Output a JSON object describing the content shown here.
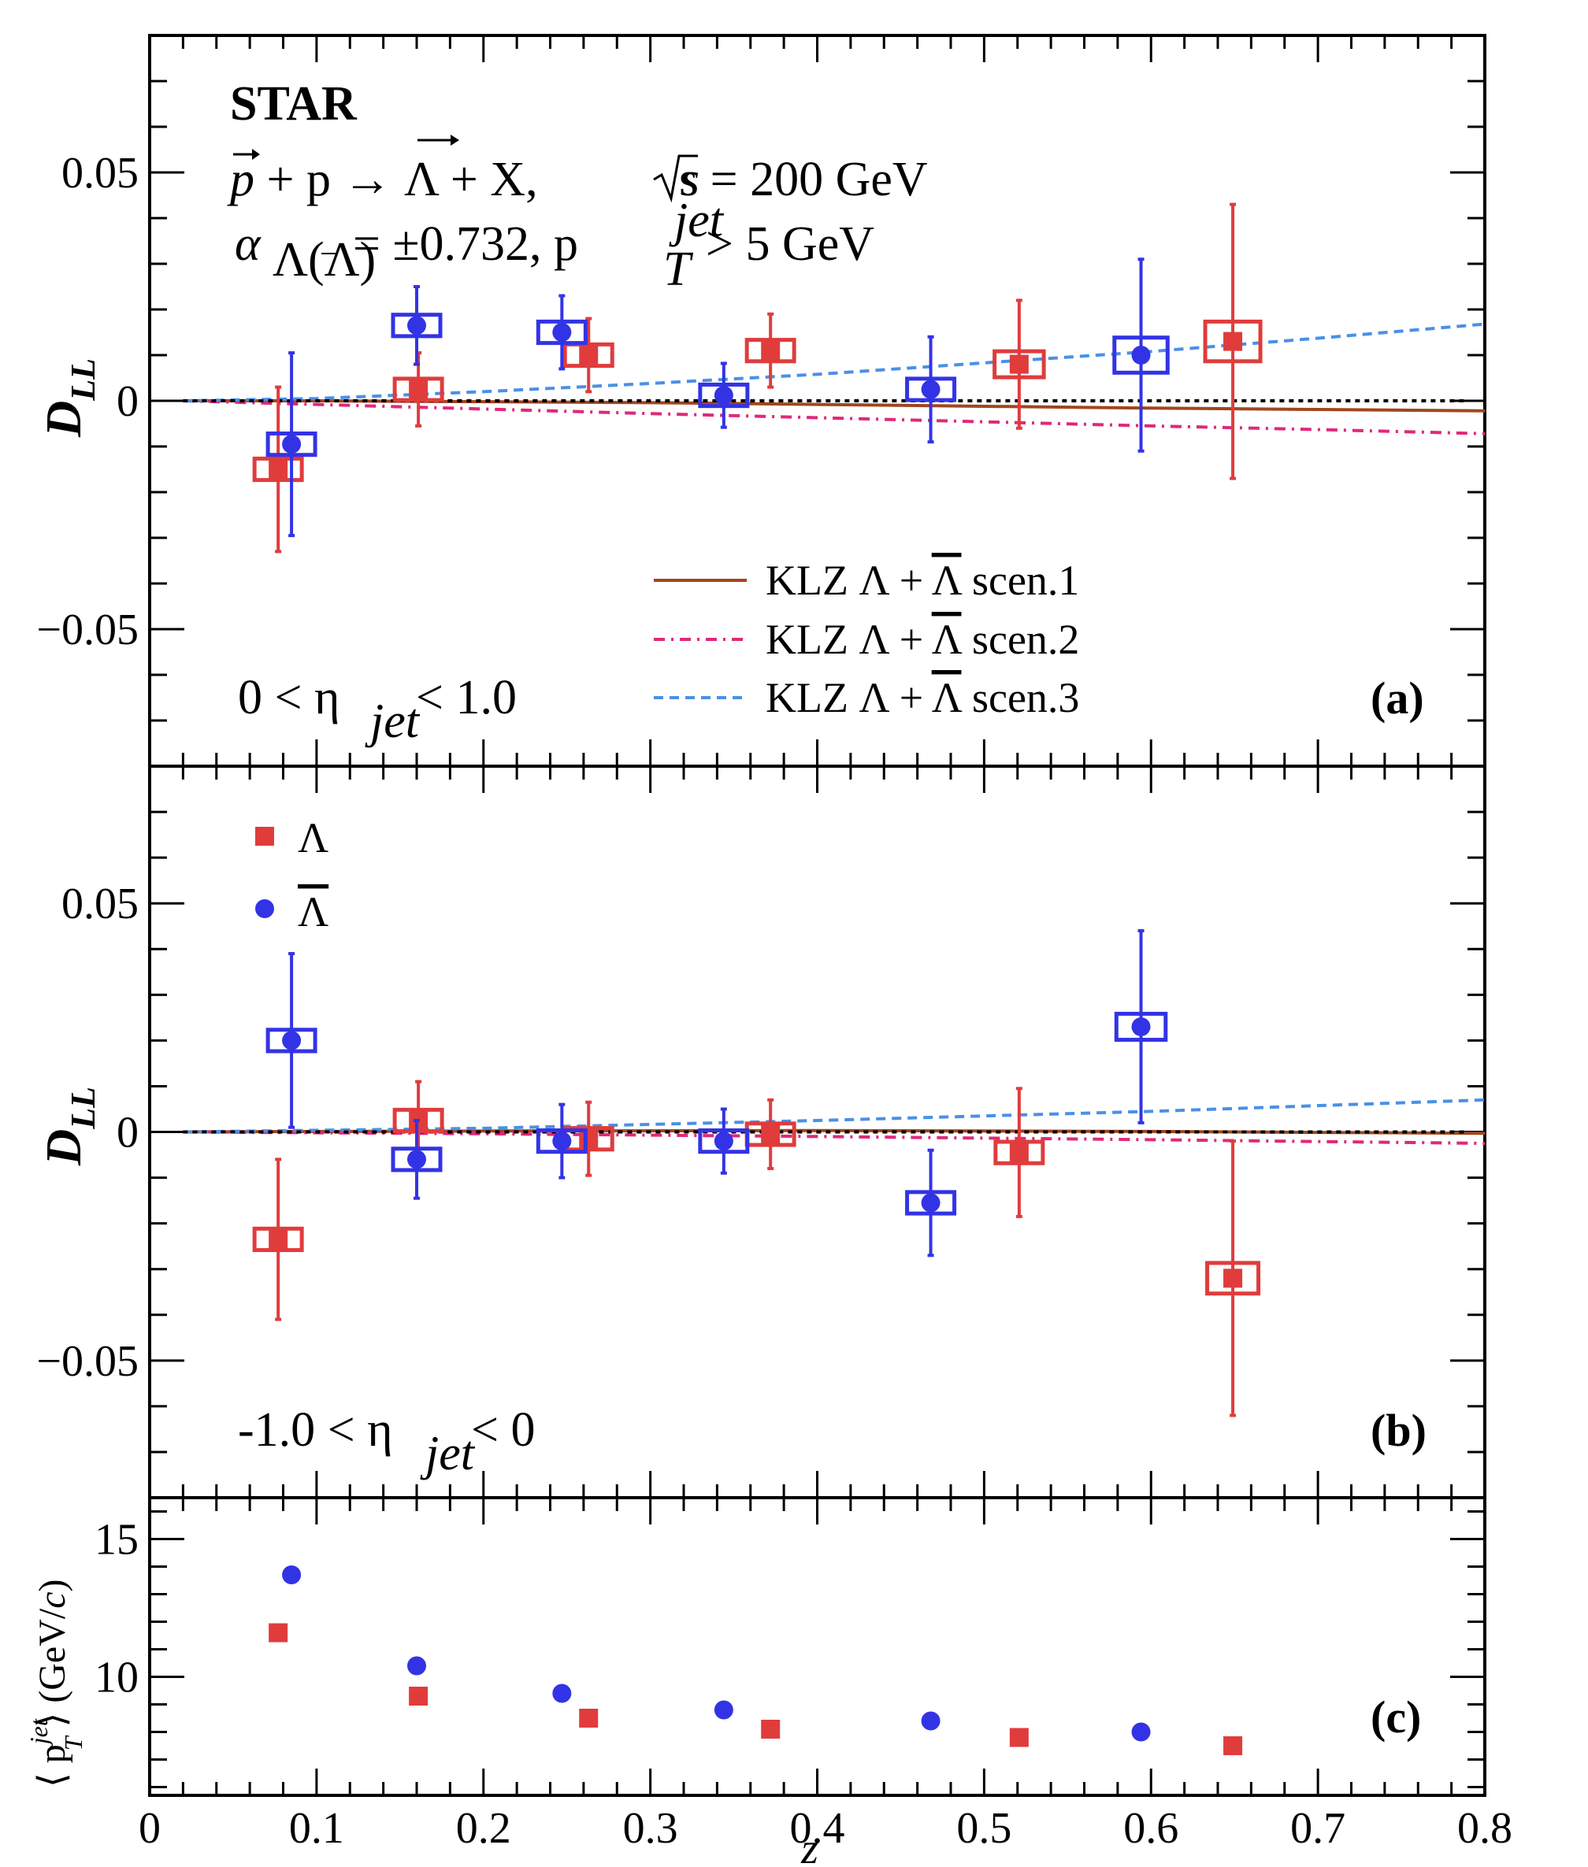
{
  "chart_data": [
    {
      "type": "scatter",
      "panel": "a",
      "panel_label": "(a)",
      "ylabel": "D",
      "ylabel_sub": "LL",
      "xlim": [
        0,
        0.8
      ],
      "ylim": [
        -0.08,
        0.08
      ],
      "yticks": [
        -0.05,
        0,
        0.05
      ],
      "ytick_labels": [
        "−0.05",
        "0",
        "0.05"
      ],
      "annotations": {
        "experiment": "STAR",
        "reaction_lhs": "p",
        "reaction_mid": " + p → ",
        "reaction_rhs": "Λ",
        "reaction_tail": " + X,",
        "sqrt_s": "s = 200 GeV",
        "alpha_a": "α",
        "alpha_sub": "Λ(Λ)",
        "alpha_val": " = ±0.732,  p",
        "pt_sup": "jet",
        "pt_sub": "T",
        "pt_val": " > 5 GeV",
        "eta_left": "0 < η",
        "eta_sub": "jet",
        "eta_right": " < 1.0"
      },
      "legend_position": "bottom-right",
      "series": [
        {
          "name": "Λ",
          "marker": "square",
          "color": "#e03c3c",
          "points": [
            {
              "z": 0.077,
              "y": -0.015,
              "err": 0.018,
              "sys": 0.002
            },
            {
              "z": 0.161,
              "y": 0.0025,
              "err": 0.008,
              "sys": 0.002
            },
            {
              "z": 0.263,
              "y": 0.01,
              "err": 0.008,
              "sys": 0.002
            },
            {
              "z": 0.372,
              "y": 0.011,
              "err": 0.008,
              "sys": 0.002
            },
            {
              "z": 0.521,
              "y": 0.008,
              "err": 0.014,
              "sys": 0.0025
            },
            {
              "z": 0.649,
              "y": 0.013,
              "err": 0.03,
              "sys": 0.004
            }
          ]
        },
        {
          "name": "Λ",
          "marker": "circle",
          "color": "#3333e6",
          "points": [
            {
              "z": 0.085,
              "y": -0.0095,
              "err": 0.02,
              "sys": 0.002
            },
            {
              "z": 0.16,
              "y": 0.0165,
              "err": 0.0085,
              "sys": 0.002
            },
            {
              "z": 0.247,
              "y": 0.015,
              "err": 0.008,
              "sys": 0.002
            },
            {
              "z": 0.344,
              "y": 0.0012,
              "err": 0.007,
              "sys": 0.002
            },
            {
              "z": 0.468,
              "y": 0.0025,
              "err": 0.0115,
              "sys": 0.002
            },
            {
              "z": 0.594,
              "y": 0.01,
              "err": 0.021,
              "sys": 0.0035
            }
          ]
        }
      ],
      "curves": [
        {
          "name": "KLZ Λ + Λ scen.1",
          "label_text": "KLZ Λ + ",
          "label_bar": "Λ",
          "label_tail": " scen.1",
          "style": "solid",
          "color": "#a0461e",
          "x": [
            0.02,
            0.1,
            0.2,
            0.3,
            0.4,
            0.5,
            0.6,
            0.7,
            0.8
          ],
          "y": [
            0,
            0,
            -0.0002,
            -0.0004,
            -0.0008,
            -0.0012,
            -0.0016,
            -0.0019,
            -0.0022
          ]
        },
        {
          "name": "KLZ Λ + Λ scen.2",
          "label_text": "KLZ Λ + ",
          "label_bar": "Λ",
          "label_tail": " scen.2",
          "style": "dashdot",
          "color": "#e0287a",
          "x": [
            0.02,
            0.1,
            0.2,
            0.3,
            0.4,
            0.5,
            0.6,
            0.7,
            0.8
          ],
          "y": [
            0,
            -0.0008,
            -0.0018,
            -0.0028,
            -0.0037,
            -0.0046,
            -0.0055,
            -0.0063,
            -0.0072
          ]
        },
        {
          "name": "KLZ Λ + Λ scen.3",
          "label_text": "KLZ Λ + ",
          "label_bar": "Λ",
          "label_tail": " scen.3",
          "style": "dashed",
          "color": "#4a90e6",
          "x": [
            0.02,
            0.1,
            0.2,
            0.3,
            0.4,
            0.5,
            0.6,
            0.7,
            0.8
          ],
          "y": [
            0,
            0.0005,
            0.002,
            0.0038,
            0.0058,
            0.0083,
            0.0108,
            0.0137,
            0.0168
          ]
        },
        {
          "name": "zero",
          "style": "dotted",
          "color": "#000000",
          "x": [
            0.02,
            0.79
          ],
          "y": [
            0,
            0
          ]
        }
      ]
    },
    {
      "type": "scatter",
      "panel": "b",
      "panel_label": "(b)",
      "ylabel": "D",
      "ylabel_sub": "LL",
      "xlim": [
        0,
        0.8
      ],
      "ylim": [
        -0.08,
        0.08
      ],
      "yticks": [
        -0.05,
        0,
        0.05
      ],
      "ytick_labels": [
        "−0.05",
        "0",
        "0.05"
      ],
      "annotations": {
        "eta_left": "-1.0 < η",
        "eta_sub": "jet",
        "eta_right": " < 0"
      },
      "legend_position": "top-left",
      "series": [
        {
          "name": "Λ",
          "marker": "square",
          "color": "#e03c3c",
          "points": [
            {
              "z": 0.077,
              "y": -0.0235,
              "err": 0.0175,
              "sys": 0.002
            },
            {
              "z": 0.161,
              "y": 0.0025,
              "err": 0.0085,
              "sys": 0.002
            },
            {
              "z": 0.263,
              "y": -0.0015,
              "err": 0.008,
              "sys": 0.002
            },
            {
              "z": 0.372,
              "y": -0.0005,
              "err": 0.0075,
              "sys": 0.002
            },
            {
              "z": 0.521,
              "y": -0.0045,
              "err": 0.014,
              "sys": 0.002
            },
            {
              "z": 0.649,
              "y": -0.032,
              "err": 0.03,
              "sys": 0.003
            }
          ]
        },
        {
          "name": "Λ",
          "marker": "circle",
          "color": "#3333e6",
          "points": [
            {
              "z": 0.085,
              "y": 0.02,
              "err": 0.019,
              "sys": 0.002
            },
            {
              "z": 0.16,
              "y": -0.006,
              "err": 0.0085,
              "sys": 0.002
            },
            {
              "z": 0.247,
              "y": -0.002,
              "err": 0.008,
              "sys": 0.002
            },
            {
              "z": 0.344,
              "y": -0.002,
              "err": 0.007,
              "sys": 0.002
            },
            {
              "z": 0.468,
              "y": -0.0155,
              "err": 0.0115,
              "sys": 0.002
            },
            {
              "z": 0.594,
              "y": 0.023,
              "err": 0.021,
              "sys": 0.0025
            }
          ]
        }
      ],
      "curves": [
        {
          "name": "scen.1",
          "style": "solid",
          "color": "#a0461e",
          "x": [
            0.02,
            0.2,
            0.4,
            0.6,
            0.8
          ],
          "y": [
            0,
            0.0002,
            0.0003,
            0.0001,
            -0.0003
          ]
        },
        {
          "name": "scen.2",
          "style": "dashdot",
          "color": "#e0287a",
          "x": [
            0.02,
            0.2,
            0.4,
            0.6,
            0.8
          ],
          "y": [
            0,
            -0.0004,
            -0.001,
            -0.0017,
            -0.0025
          ]
        },
        {
          "name": "scen.3",
          "style": "dashed",
          "color": "#4a90e6",
          "x": [
            0.02,
            0.2,
            0.4,
            0.6,
            0.8
          ],
          "y": [
            0,
            0.0008,
            0.0025,
            0.0045,
            0.007
          ]
        },
        {
          "name": "zero",
          "style": "dotted",
          "color": "#000000",
          "x": [
            0.02,
            0.79
          ],
          "y": [
            0,
            0
          ]
        }
      ]
    },
    {
      "type": "scatter",
      "panel": "c",
      "panel_label": "(c)",
      "ylabel_left": "⟨ p",
      "ylabel_sup": "jet",
      "ylabel_sub": "T",
      "ylabel_right": " ⟩ (GeV/",
      "ylabel_c": "c",
      "ylabel_close": ")",
      "xlabel": "z",
      "xlim": [
        0,
        0.8
      ],
      "ylim": [
        5.7,
        16.5
      ],
      "yticks": [
        10,
        15
      ],
      "ytick_labels": [
        "10",
        "15"
      ],
      "xticks": [
        0,
        0.1,
        0.2,
        0.3,
        0.4,
        0.5,
        0.6,
        0.7,
        0.8
      ],
      "xtick_labels": [
        "0",
        "0.1",
        "0.2",
        "0.3",
        "0.4",
        "0.5",
        "0.6",
        "0.7",
        "0.8"
      ],
      "series": [
        {
          "name": "Λ",
          "marker": "square",
          "color": "#e03c3c",
          "points": [
            {
              "z": 0.077,
              "y": 11.6
            },
            {
              "z": 0.161,
              "y": 9.3
            },
            {
              "z": 0.263,
              "y": 8.5
            },
            {
              "z": 0.372,
              "y": 8.1
            },
            {
              "z": 0.521,
              "y": 7.8
            },
            {
              "z": 0.649,
              "y": 7.5
            }
          ]
        },
        {
          "name": "Λ",
          "marker": "circle",
          "color": "#3333e6",
          "points": [
            {
              "z": 0.085,
              "y": 13.7
            },
            {
              "z": 0.16,
              "y": 10.4
            },
            {
              "z": 0.247,
              "y": 9.4
            },
            {
              "z": 0.344,
              "y": 8.8
            },
            {
              "z": 0.468,
              "y": 8.4
            },
            {
              "z": 0.594,
              "y": 8.0
            }
          ]
        }
      ]
    }
  ],
  "legend_markers": {
    "lambda_label": "Λ",
    "antilambda_label": "Λ"
  }
}
